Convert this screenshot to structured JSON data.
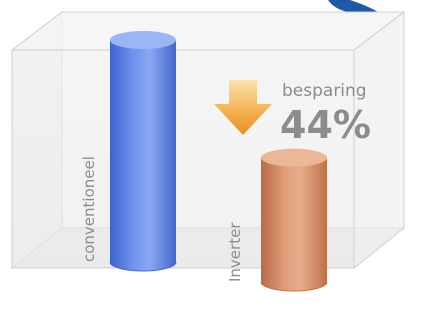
{
  "chart_data": {
    "type": "bar",
    "title": "",
    "xlabel": "",
    "ylabel": "",
    "ylim": [
      0,
      100
    ],
    "categories": [
      "conventioneel",
      "Inverter"
    ],
    "values": [
      100,
      56
    ],
    "colors": [
      "#5a7fe0",
      "#d08a66"
    ],
    "annotation": {
      "caption": "besparing",
      "value_text": "44%",
      "value": 44,
      "arrow_color": "#f0a030"
    }
  }
}
